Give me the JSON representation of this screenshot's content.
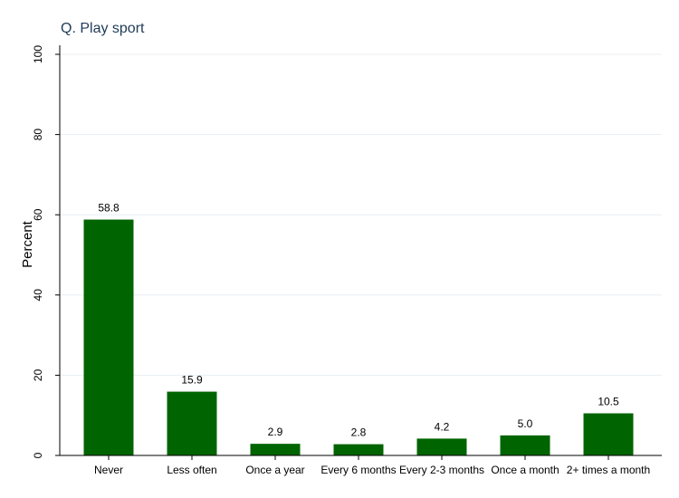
{
  "chart_data": {
    "type": "bar",
    "title": "Q. Play sport",
    "xlabel": "",
    "ylabel": "Percent",
    "categories": [
      "Never",
      "Less often",
      "Once a year",
      "Every 6 months",
      "Every 2-3 months",
      "Once a month",
      "2+ times a month"
    ],
    "values": [
      58.8,
      15.9,
      2.9,
      2.8,
      4.2,
      5.0,
      10.5
    ],
    "value_labels": [
      "58.8",
      "15.9",
      "2.9",
      "2.8",
      "4.2",
      "5.0",
      "10.5"
    ],
    "ylim": [
      0,
      100
    ],
    "yticks": [
      0,
      20,
      40,
      60,
      80,
      100
    ],
    "ytick_labels": [
      "0",
      "20",
      "40",
      "60",
      "80",
      "100"
    ],
    "grid": true,
    "legend": false,
    "colors": {
      "bar": "#006400",
      "title": "#1f3b57",
      "grid": "#e8eef2",
      "axis": "#000000",
      "text": "#000000"
    }
  }
}
